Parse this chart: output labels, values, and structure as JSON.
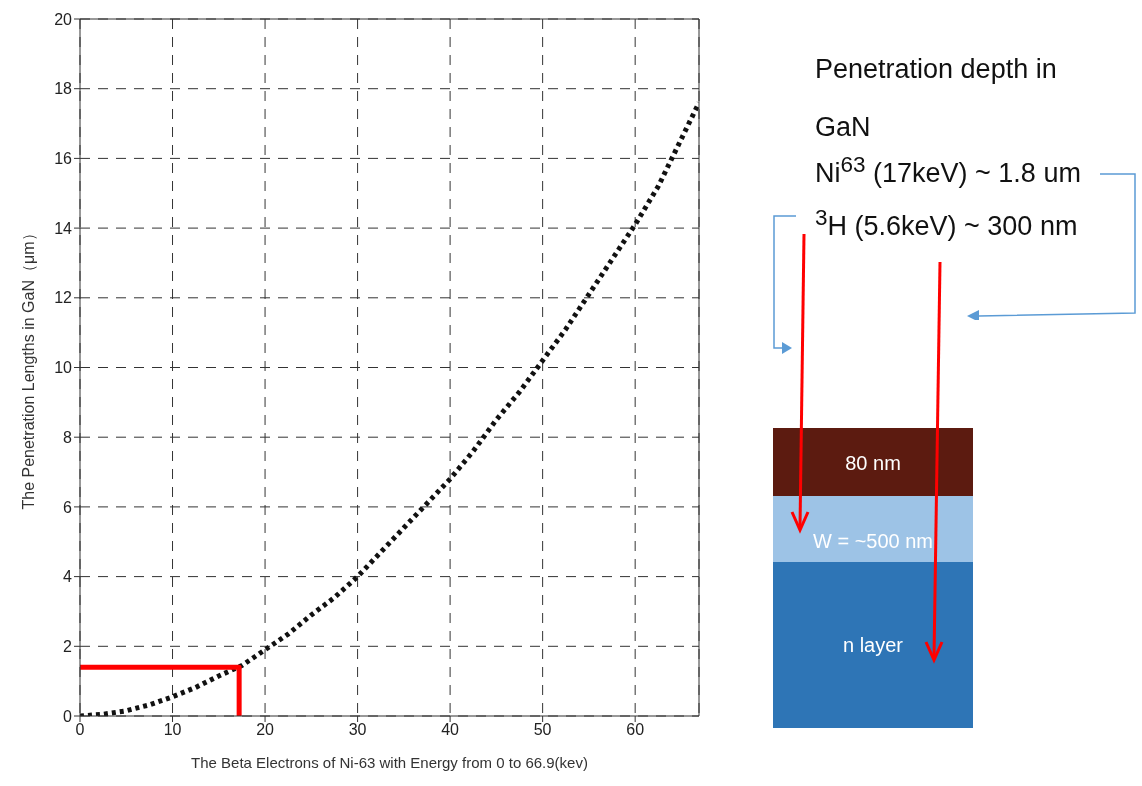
{
  "chart_data": {
    "type": "line",
    "xlabel": "The Beta Electrons of Ni-63 with Energy from 0 to 66.9(kev)",
    "ylabel": "The Penetration Lengths in GaN（μm）",
    "xlim": [
      0,
      66.9
    ],
    "xticks": [
      0,
      10,
      20,
      30,
      40,
      50,
      60
    ],
    "ylim": [
      0,
      20
    ],
    "yticks": [
      0,
      2,
      4,
      6,
      8,
      10,
      12,
      14,
      16,
      18,
      20
    ],
    "grid": true,
    "marker": "none",
    "series": [
      {
        "color": "#111111",
        "line_style": "dotted",
        "x": [
          0,
          2.5,
          5,
          7.5,
          10,
          12.5,
          15,
          17.5,
          20,
          22.5,
          25,
          27.5,
          30,
          32.5,
          35,
          37.5,
          40,
          42.5,
          45,
          47.5,
          50,
          52.5,
          55,
          57.5,
          60,
          62.5,
          66.9
        ],
        "values": [
          0,
          0.05,
          0.15,
          0.32,
          0.55,
          0.82,
          1.15,
          1.45,
          1.9,
          2.35,
          2.9,
          3.4,
          4.0,
          4.7,
          5.4,
          6.1,
          6.8,
          7.6,
          8.5,
          9.3,
          10.2,
          11.1,
          12.1,
          13.1,
          14.1,
          15.2,
          17.6
        ]
      },
      {
        "color": "#ff0000",
        "line_style": "solid",
        "x": [
          0,
          17.2,
          17.2
        ],
        "values": [
          1.4,
          1.4,
          0
        ]
      }
    ],
    "annotations": [
      "Penetration depth in GaN",
      "Ni$^{63}$ (17keV) ~ 1.8 um",
      "$^{3}$H (5.6keV) ~ 300 nm",
      "80 nm",
      "W = ~500 nm",
      "n layer"
    ]
  }
}
